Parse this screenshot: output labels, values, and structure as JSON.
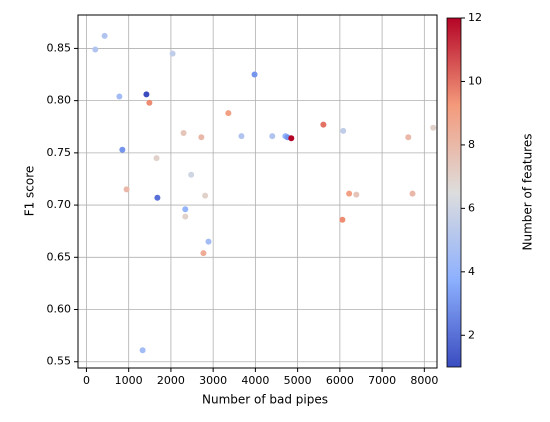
{
  "chart_data": {
    "type": "scatter",
    "xlabel": "Number of bad pipes",
    "ylabel": "F1 score",
    "colorbar_label": "Number of features",
    "x": [
      210,
      430,
      780,
      850,
      950,
      1420,
      1490,
      1330,
      1660,
      1680,
      2040,
      2300,
      2340,
      2340,
      2480,
      2720,
      2810,
      2770,
      2890,
      3360,
      3670,
      3980,
      4400,
      4710,
      4760,
      4850,
      5610,
      6080,
      6060,
      6220,
      6390,
      7620,
      7720,
      8210
    ],
    "y": [
      0.849,
      0.862,
      0.804,
      0.753,
      0.715,
      0.806,
      0.798,
      0.561,
      0.745,
      0.707,
      0.845,
      0.769,
      0.696,
      0.689,
      0.729,
      0.765,
      0.709,
      0.654,
      0.665,
      0.788,
      0.766,
      0.825,
      0.766,
      0.766,
      0.765,
      0.764,
      0.777,
      0.771,
      0.686,
      0.711,
      0.71,
      0.765,
      0.711,
      0.774
    ],
    "features": [
      5,
      5,
      4.5,
      3,
      8,
      1,
      9.5,
      4.5,
      7,
      2,
      5.5,
      7.5,
      4,
      7,
      6,
      8,
      7,
      8.5,
      4.5,
      9,
      5,
      3,
      5,
      4,
      3,
      12,
      10,
      5.5,
      9.5,
      9,
      7.5,
      8,
      8,
      7
    ],
    "cmap": "coolwarm",
    "clim": [
      1,
      12
    ],
    "cticks": [
      2,
      4,
      6,
      8,
      10,
      12
    ],
    "xlim": [
      -200,
      8300
    ],
    "xticks": [
      0,
      1000,
      2000,
      3000,
      4000,
      5000,
      6000,
      7000,
      8000
    ],
    "ylim": [
      0.544,
      0.882
    ],
    "yticks": [
      0.55,
      {
        "value": 0.6,
        "label": "0.60"
      },
      0.65,
      {
        "value": 0.7,
        "label": "0.70"
      },
      0.75,
      {
        "value": 0.8,
        "label": "0.80"
      },
      0.85
    ],
    "grid": true
  }
}
